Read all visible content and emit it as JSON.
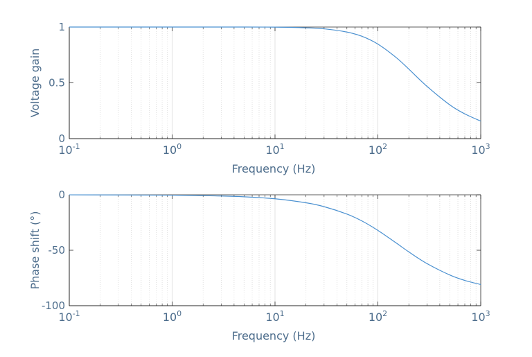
{
  "chart_data": [
    {
      "type": "line",
      "xscale": "log",
      "xlim": [
        0.1,
        1000
      ],
      "ylim": [
        0,
        1
      ],
      "xlabel": "Frequency (Hz)",
      "ylabel": "Voltage gain",
      "x_ticks": [
        {
          "base": "10",
          "exp": "-1"
        },
        {
          "base": "10",
          "exp": "0"
        },
        {
          "base": "10",
          "exp": "1"
        },
        {
          "base": "10",
          "exp": "2"
        },
        {
          "base": "10",
          "exp": "3"
        }
      ],
      "y_ticks": [
        "0",
        "0.5",
        "1"
      ],
      "y_tick_values": [
        0,
        0.5,
        1
      ],
      "grid": "x-minor-dotted",
      "line_color": "#4a90d0",
      "series": [
        {
          "x": [
            0.1,
            1,
            5,
            10,
            20,
            30,
            50,
            70,
            100,
            150,
            200,
            300,
            500,
            700,
            1000
          ],
          "y": [
            1.0,
            1.0,
            1.0,
            0.999,
            0.993,
            0.984,
            0.955,
            0.917,
            0.847,
            0.728,
            0.623,
            0.469,
            0.303,
            0.222,
            0.157
          ]
        }
      ]
    },
    {
      "type": "line",
      "xscale": "log",
      "xlim": [
        0.1,
        1000
      ],
      "ylim": [
        -100,
        0
      ],
      "xlabel": "Frequency (Hz)",
      "ylabel": "Phase shift (°)",
      "x_ticks": [
        {
          "base": "10",
          "exp": "-1"
        },
        {
          "base": "10",
          "exp": "0"
        },
        {
          "base": "10",
          "exp": "1"
        },
        {
          "base": "10",
          "exp": "2"
        },
        {
          "base": "10",
          "exp": "3"
        }
      ],
      "y_ticks": [
        "-100",
        "-50",
        "0"
      ],
      "y_tick_values": [
        -100,
        -50,
        0
      ],
      "grid": "x-minor-dotted",
      "line_color": "#4a90d0",
      "series": [
        {
          "x": [
            0.1,
            1,
            3,
            5,
            10,
            20,
            30,
            50,
            70,
            100,
            150,
            200,
            300,
            500,
            700,
            1000
          ],
          "y": [
            -0.04,
            -0.36,
            -1.1,
            -1.8,
            -3.6,
            -7.2,
            -10.7,
            -17.4,
            -23.6,
            -32.1,
            -43.3,
            -51.5,
            -62.0,
            -72.3,
            -77.2,
            -80.9
          ]
        }
      ]
    }
  ]
}
